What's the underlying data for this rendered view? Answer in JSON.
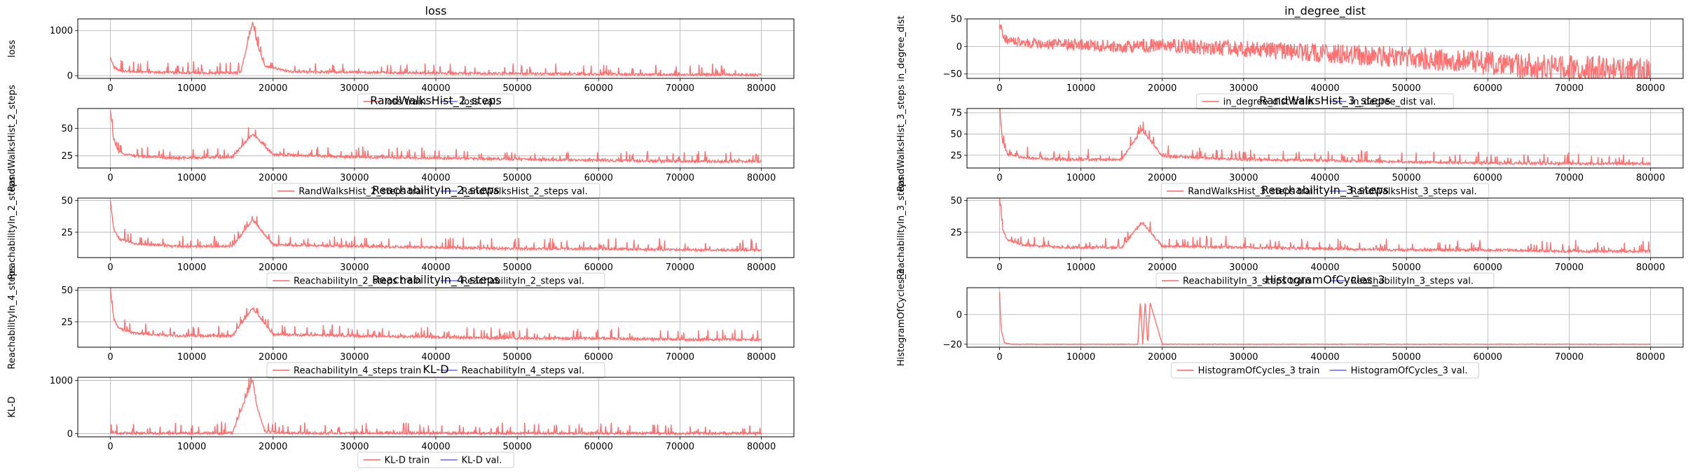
{
  "chart_data": [
    {
      "type": "line",
      "title": "loss",
      "xlabel": "",
      "ylabel": "loss",
      "xlim": [
        -4000,
        84000
      ],
      "ylim": [
        -60,
        1260
      ],
      "xticks": [
        0,
        10000,
        20000,
        30000,
        40000,
        50000,
        60000,
        70000,
        80000
      ],
      "yticks": [
        0,
        1000
      ],
      "x_tick_labels": [
        "0",
        "10000",
        "20000",
        "30000",
        "40000",
        "50000",
        "60000",
        "70000",
        "80000"
      ],
      "y_tick_labels": [
        "0",
        "1000"
      ],
      "grid": true,
      "legend_position": "bottom-center",
      "series": [
        {
          "name": "loss train",
          "color": "#ff6060",
          "x": [
            0,
            400,
            1000,
            2000,
            4000,
            8000,
            12000,
            16000,
            17500,
            18000,
            19000,
            22000,
            30000,
            40000,
            50000,
            60000,
            70000,
            80000
          ],
          "values": [
            420,
            210,
            120,
            95,
            80,
            70,
            60,
            70,
            1200,
            700,
            220,
            90,
            80,
            55,
            45,
            35,
            25,
            18
          ]
        },
        {
          "name": "loss val.",
          "color": "#6060ff",
          "x": [],
          "values": []
        }
      ]
    },
    {
      "type": "line",
      "title": "in_degree_dist",
      "xlabel": "",
      "ylabel": "in_degree_dist",
      "xlim": [
        -4000,
        84000
      ],
      "ylim": [
        -58,
        50
      ],
      "xticks": [
        0,
        10000,
        20000,
        30000,
        40000,
        50000,
        60000,
        70000,
        80000
      ],
      "yticks": [
        -50,
        0,
        50
      ],
      "x_tick_labels": [
        "0",
        "10000",
        "20000",
        "30000",
        "40000",
        "50000",
        "60000",
        "70000",
        "80000"
      ],
      "y_tick_labels": [
        "−50",
        "0",
        "50"
      ],
      "grid": true,
      "legend_position": "bottom-center",
      "series": [
        {
          "name": "in_degree_dist train",
          "color": "#ff6060",
          "x": [
            0,
            500,
            2000,
            5000,
            10000,
            15000,
            20000,
            25000,
            30000,
            40000,
            50000,
            60000,
            70000,
            80000
          ],
          "values": [
            45,
            15,
            8,
            5,
            3,
            0,
            2,
            -2,
            -5,
            -12,
            -20,
            -30,
            -40,
            -48
          ]
        },
        {
          "name": "in_degree_dist val.",
          "color": "#6060ff",
          "x": [],
          "values": []
        }
      ]
    },
    {
      "type": "line",
      "title": "RandWalksHist_2_steps",
      "xlabel": "",
      "ylabel": "RandWalksHist_2_steps",
      "xlim": [
        -4000,
        84000
      ],
      "ylim": [
        14,
        68
      ],
      "xticks": [
        0,
        10000,
        20000,
        30000,
        40000,
        50000,
        60000,
        70000,
        80000
      ],
      "yticks": [
        25,
        50
      ],
      "x_tick_labels": [
        "0",
        "10000",
        "20000",
        "30000",
        "40000",
        "50000",
        "60000",
        "70000",
        "80000"
      ],
      "y_tick_labels": [
        "25",
        "50"
      ],
      "grid": true,
      "legend_position": "bottom-center",
      "series": [
        {
          "name": "RandWalksHist_2_steps train",
          "color": "#ff6060",
          "x": [
            0,
            400,
            1000,
            3000,
            8000,
            15000,
            17500,
            20000,
            30000,
            40000,
            50000,
            60000,
            70000,
            80000
          ],
          "values": [
            66,
            40,
            28,
            25,
            23,
            24,
            45,
            26,
            24,
            23,
            22,
            21,
            20,
            20
          ]
        },
        {
          "name": "RandWalksHist_2_steps val.",
          "color": "#6060ff",
          "x": [],
          "values": []
        }
      ]
    },
    {
      "type": "line",
      "title": "RandWalksHist_3_steps",
      "xlabel": "",
      "ylabel": "RandWalksHist_3_steps",
      "xlim": [
        -4000,
        84000
      ],
      "ylim": [
        10,
        80
      ],
      "xticks": [
        0,
        10000,
        20000,
        30000,
        40000,
        50000,
        60000,
        70000,
        80000
      ],
      "yticks": [
        25,
        50,
        75
      ],
      "x_tick_labels": [
        "0",
        "10000",
        "20000",
        "30000",
        "40000",
        "50000",
        "60000",
        "70000",
        "80000"
      ],
      "y_tick_labels": [
        "25",
        "50",
        "75"
      ],
      "grid": true,
      "legend_position": "bottom-center",
      "series": [
        {
          "name": "RandWalksHist_3_steps train",
          "color": "#ff6060",
          "x": [
            0,
            400,
            1000,
            3000,
            8000,
            15000,
            17500,
            20000,
            30000,
            40000,
            50000,
            60000,
            70000,
            80000
          ],
          "values": [
            78,
            40,
            26,
            22,
            20,
            20,
            55,
            24,
            20,
            19,
            17,
            16,
            15,
            15
          ]
        },
        {
          "name": "RandWalksHist_3_steps val.",
          "color": "#6060ff",
          "x": [],
          "values": []
        }
      ]
    },
    {
      "type": "line",
      "title": "ReachabilityIn_2_steps",
      "xlabel": "",
      "ylabel": "ReachabilityIn_2_steps",
      "xlim": [
        -4000,
        84000
      ],
      "ylim": [
        5,
        52
      ],
      "xticks": [
        0,
        10000,
        20000,
        30000,
        40000,
        50000,
        60000,
        70000,
        80000
      ],
      "yticks": [
        25,
        50
      ],
      "x_tick_labels": [
        "0",
        "10000",
        "20000",
        "30000",
        "40000",
        "50000",
        "60000",
        "70000",
        "80000"
      ],
      "y_tick_labels": [
        "25",
        "50"
      ],
      "grid": true,
      "legend_position": "bottom-center",
      "series": [
        {
          "name": "ReachabilityIn_2_steps train",
          "color": "#ff6060",
          "x": [
            0,
            400,
            1000,
            3000,
            8000,
            15000,
            17500,
            20000,
            30000,
            40000,
            50000,
            60000,
            70000,
            80000
          ],
          "values": [
            50,
            28,
            20,
            16,
            14,
            14,
            35,
            15,
            14,
            13,
            12,
            12,
            11,
            11
          ]
        },
        {
          "name": "ReachabilityIn_2_steps val.",
          "color": "#6060ff",
          "x": [],
          "values": []
        }
      ]
    },
    {
      "type": "line",
      "title": "ReachabilityIn_3_steps",
      "xlabel": "",
      "ylabel": "ReachabilityIn_3_steps",
      "xlim": [
        -4000,
        84000
      ],
      "ylim": [
        5,
        52
      ],
      "xticks": [
        0,
        10000,
        20000,
        30000,
        40000,
        50000,
        60000,
        70000,
        80000
      ],
      "yticks": [
        25,
        50
      ],
      "x_tick_labels": [
        "0",
        "10000",
        "20000",
        "30000",
        "40000",
        "50000",
        "60000",
        "70000",
        "80000"
      ],
      "y_tick_labels": [
        "25",
        "50"
      ],
      "grid": true,
      "legend_position": "bottom-center",
      "series": [
        {
          "name": "ReachabilityIn_3_steps train",
          "color": "#ff6060",
          "x": [
            0,
            400,
            1000,
            3000,
            8000,
            15000,
            17500,
            20000,
            30000,
            40000,
            50000,
            60000,
            70000,
            80000
          ],
          "values": [
            50,
            27,
            19,
            15,
            13,
            13,
            33,
            14,
            13,
            12,
            11,
            11,
            10,
            10
          ]
        },
        {
          "name": "ReachabilityIn_3_steps val.",
          "color": "#6060ff",
          "x": [],
          "values": []
        }
      ]
    },
    {
      "type": "line",
      "title": "ReachabilityIn_4_steps",
      "xlabel": "",
      "ylabel": "ReachabilityIn_4_steps",
      "xlim": [
        -4000,
        84000
      ],
      "ylim": [
        5,
        52
      ],
      "xticks": [
        0,
        10000,
        20000,
        30000,
        40000,
        50000,
        60000,
        70000,
        80000
      ],
      "yticks": [
        25,
        50
      ],
      "x_tick_labels": [
        "0",
        "10000",
        "20000",
        "30000",
        "40000",
        "50000",
        "60000",
        "70000",
        "80000"
      ],
      "y_tick_labels": [
        "25",
        "50"
      ],
      "grid": true,
      "legend_position": "bottom-center",
      "series": [
        {
          "name": "ReachabilityIn_4_steps train",
          "color": "#ff6060",
          "x": [
            0,
            400,
            1000,
            3000,
            8000,
            15000,
            17500,
            20000,
            30000,
            40000,
            50000,
            60000,
            70000,
            80000
          ],
          "values": [
            50,
            28,
            20,
            16,
            14,
            14,
            36,
            15,
            14,
            13,
            12,
            12,
            11,
            11
          ]
        },
        {
          "name": "ReachabilityIn_4_steps val.",
          "color": "#6060ff",
          "x": [],
          "values": []
        }
      ]
    },
    {
      "type": "line",
      "title": "HistogramOfCycles_3",
      "xlabel": "",
      "ylabel": "HistogramOfCycles_3",
      "xlim": [
        -4000,
        84000
      ],
      "ylim": [
        -22,
        18
      ],
      "xticks": [
        0,
        10000,
        20000,
        30000,
        40000,
        50000,
        60000,
        70000,
        80000
      ],
      "yticks": [
        -20,
        0
      ],
      "x_tick_labels": [
        "0",
        "10000",
        "20000",
        "30000",
        "40000",
        "50000",
        "60000",
        "70000",
        "80000"
      ],
      "y_tick_labels": [
        "−20",
        "0"
      ],
      "grid": true,
      "legend_position": "bottom-center",
      "series": [
        {
          "name": "HistogramOfCycles_3 train",
          "color": "#ff6060",
          "x": [
            0,
            200,
            600,
            1500,
            10000,
            17000,
            17300,
            17600,
            17900,
            18200,
            18500,
            20000,
            40000,
            60000,
            80000
          ],
          "values": [
            15,
            -10,
            -19,
            -20,
            -20,
            -20,
            9,
            -20,
            9,
            -20,
            8,
            -20,
            -20,
            -20,
            -20
          ]
        },
        {
          "name": "HistogramOfCycles_3 val.",
          "color": "#6060ff",
          "x": [],
          "values": []
        }
      ]
    },
    {
      "type": "line",
      "title": "KL-D",
      "xlabel": "",
      "ylabel": "KL-D",
      "xlim": [
        -4000,
        84000
      ],
      "ylim": [
        -60,
        1060
      ],
      "xticks": [
        0,
        10000,
        20000,
        30000,
        40000,
        50000,
        60000,
        70000,
        80000
      ],
      "yticks": [
        0,
        1000
      ],
      "x_tick_labels": [
        "0",
        "10000",
        "20000",
        "30000",
        "40000",
        "50000",
        "60000",
        "70000",
        "80000"
      ],
      "y_tick_labels": [
        "0",
        "1000"
      ],
      "grid": true,
      "legend_position": "bottom-center",
      "series": [
        {
          "name": "KL-D train",
          "color": "#ff6060",
          "x": [
            0,
            1000,
            5000,
            10000,
            15000,
            17500,
            18000,
            19000,
            22000,
            30000,
            40000,
            50000,
            60000,
            70000,
            80000
          ],
          "values": [
            30,
            10,
            8,
            8,
            10,
            1020,
            520,
            40,
            12,
            10,
            9,
            8,
            7,
            6,
            6
          ]
        },
        {
          "name": "KL-D val.",
          "color": "#6060ff",
          "x": [],
          "values": []
        }
      ]
    }
  ]
}
